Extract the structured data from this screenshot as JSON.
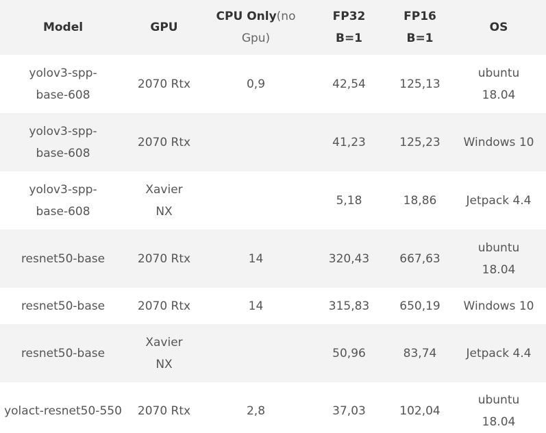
{
  "headers": {
    "model": "Model",
    "gpu": "GPU",
    "cpu_bold": "CPU Only",
    "cpu_light_1": "(no",
    "cpu_light_2": "Gpu)",
    "fp32_line1": "FP32",
    "fp32_line2": "B=1",
    "fp16_line1": "FP16",
    "fp16_line2": "B=1",
    "os": "OS"
  },
  "rows": [
    {
      "model_lines": [
        "yolov3-spp-",
        "base-608"
      ],
      "gpu_lines": [
        "2070 Rtx"
      ],
      "cpu": "0,9",
      "fp32": "42,54",
      "fp16": "125,13",
      "os_lines": [
        "ubuntu",
        "18.04"
      ]
    },
    {
      "model_lines": [
        "yolov3-spp-",
        "base-608"
      ],
      "gpu_lines": [
        "2070 Rtx"
      ],
      "cpu": "",
      "fp32": "41,23",
      "fp16": "125,23",
      "os_lines": [
        "Windows 10"
      ]
    },
    {
      "model_lines": [
        "yolov3-spp-",
        "base-608"
      ],
      "gpu_lines": [
        "Xavier",
        "NX"
      ],
      "cpu": "",
      "fp32": "5,18",
      "fp16": "18,86",
      "os_lines": [
        "Jetpack 4.4"
      ]
    },
    {
      "model_lines": [
        "resnet50-base"
      ],
      "gpu_lines": [
        "2070 Rtx"
      ],
      "cpu": "14",
      "fp32": "320,43",
      "fp16": "667,63",
      "os_lines": [
        "ubuntu",
        "18.04"
      ]
    },
    {
      "model_lines": [
        "resnet50-base"
      ],
      "gpu_lines": [
        "2070 Rtx"
      ],
      "cpu": "14",
      "fp32": "315,83",
      "fp16": "650,19",
      "os_lines": [
        "Windows 10"
      ]
    },
    {
      "model_lines": [
        "resnet50-base"
      ],
      "gpu_lines": [
        "Xavier",
        "NX"
      ],
      "cpu": "",
      "fp32": "50,96",
      "fp16": "83,74",
      "os_lines": [
        "Jetpack 4.4"
      ]
    },
    {
      "model_lines": [
        "yolact-resnet50-550"
      ],
      "gpu_lines": [
        "2070 Rtx"
      ],
      "cpu": "2,8",
      "fp32": "37,03",
      "fp16": "102,04",
      "os_lines": [
        "ubuntu",
        "18.04"
      ]
    }
  ]
}
